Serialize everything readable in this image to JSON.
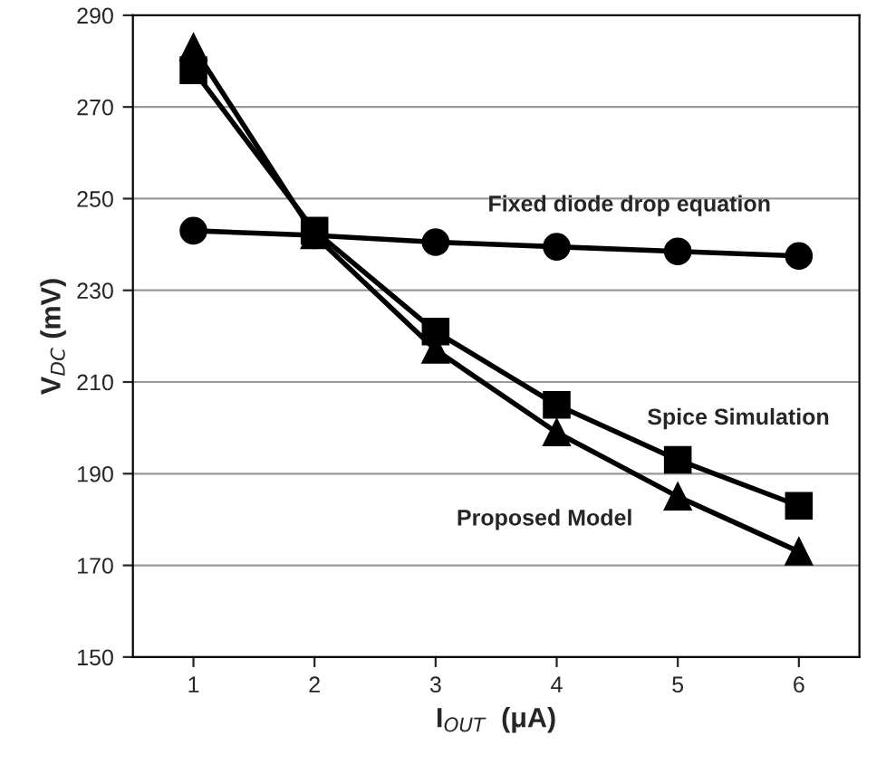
{
  "chart_data": {
    "type": "line",
    "x": [
      1,
      2,
      3,
      4,
      5,
      6
    ],
    "xlabel": "I$_{OUT}$  (μA)",
    "ylabel": "V$_{DC}$ (mV)",
    "xlim": [
      0.5,
      6.5
    ],
    "xticks": [
      1,
      2,
      3,
      4,
      5,
      6
    ],
    "ylim": [
      150,
      290
    ],
    "yticks": [
      150,
      170,
      190,
      210,
      230,
      250,
      270,
      290
    ],
    "grid": "y",
    "legend": false,
    "line_style": "solid",
    "series": [
      {
        "name": "Fixed diode drop equation",
        "color": "#000000",
        "marker": "circle",
        "values": [
          243,
          242,
          240.5,
          239.5,
          238.5,
          237.5
        ]
      },
      {
        "name": "Spice Simulation",
        "color": "#000000",
        "marker": "square",
        "values": [
          278,
          243,
          221,
          205,
          193,
          183
        ]
      },
      {
        "name": "Proposed Model",
        "color": "#000000",
        "marker": "triangle",
        "values": [
          283,
          242,
          217,
          199,
          185,
          173
        ]
      }
    ]
  }
}
